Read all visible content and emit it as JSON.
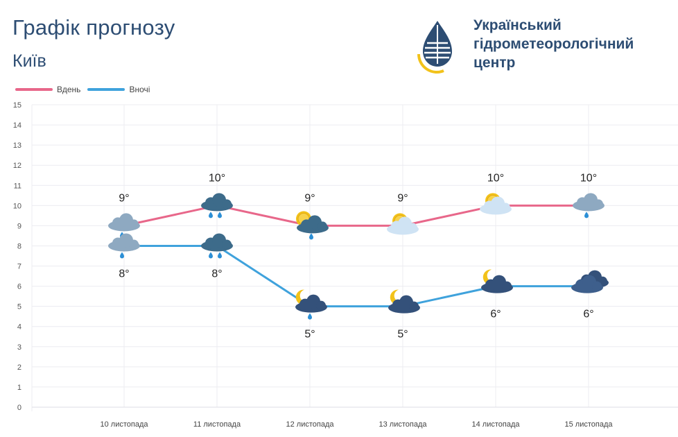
{
  "header": {
    "title": "Графік прогнозу",
    "city": "Київ",
    "org_lines": [
      "Український",
      "гідрометеорологічний",
      "центр"
    ]
  },
  "colors": {
    "day": "#e8678a",
    "night": "#3fa2dc",
    "brand": "#2d4d73",
    "sun": "#f2c21a"
  },
  "chart_data": {
    "type": "line",
    "categories": [
      "10 листопада",
      "11 листопада",
      "12 листопада",
      "13 листопада",
      "14 листопада",
      "15 листопада"
    ],
    "series": [
      {
        "name": "Вдень",
        "values": [
          9,
          10,
          9,
          9,
          10,
          10
        ],
        "labels": [
          "9°",
          "10°",
          "9°",
          "9°",
          "10°",
          "10°"
        ],
        "icons": [
          "cloud-rain-icon",
          "cloud-rain-dark-icon",
          "sun-cloud-rain-icon",
          "sun-cloud-icon",
          "sun-cloud-icon",
          "cloud-rain-icon"
        ]
      },
      {
        "name": "Вночі",
        "values": [
          8,
          8,
          5,
          5,
          6,
          6
        ],
        "labels": [
          "8°",
          "8°",
          "5°",
          "5°",
          "6°",
          "6°"
        ],
        "icons": [
          "cloud-rain-icon",
          "cloud-rain-dark-icon",
          "moon-cloud-rain-icon",
          "moon-cloud-icon",
          "moon-cloud-icon",
          "cloud-dark-icon"
        ]
      }
    ],
    "y_ticks": [
      "0",
      "1",
      "2",
      "3",
      "4",
      "5",
      "6",
      "7",
      "8",
      "9",
      "10",
      "11",
      "12",
      "13",
      "14",
      "15"
    ],
    "ylim": [
      0,
      15
    ],
    "grid": true,
    "legend": "top-left"
  }
}
